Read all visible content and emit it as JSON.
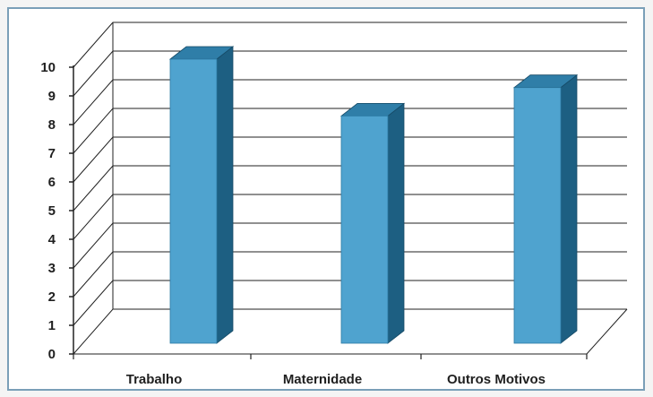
{
  "chart_data": {
    "type": "bar",
    "style": "3d-column",
    "categories": [
      "Trabalho",
      "Maternidade",
      "Outros Motivos"
    ],
    "values": [
      10,
      8,
      9
    ],
    "ylim": [
      0,
      10
    ],
    "yticks": [
      "0",
      "1",
      "2",
      "3",
      "4",
      "5",
      "6",
      "7",
      "8",
      "9",
      "10"
    ],
    "title": "",
    "xlabel": "",
    "ylabel": "",
    "grid": true,
    "legend": "none",
    "colors": {
      "bar_front": "#4fa3cf",
      "bar_top": "#2f7ea8",
      "bar_side": "#1d5f82",
      "gridline": "#222222",
      "axis": "#222222"
    }
  }
}
